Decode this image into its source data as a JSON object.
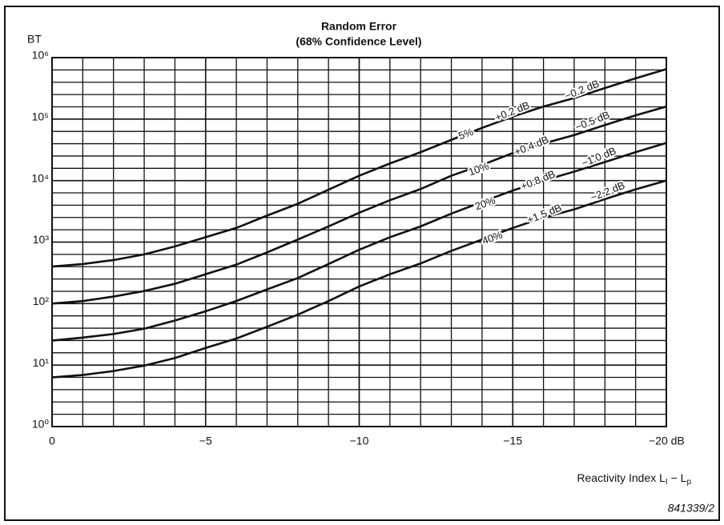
{
  "chart_data": {
    "type": "line",
    "title": "Random Error",
    "subtitle": "(68% Confidence Level)",
    "ylabel": "BT",
    "xlabel": [
      "Reactivity Index L",
      "I",
      " − L",
      "p"
    ],
    "figure_code": "841339/2",
    "x": [
      0,
      -1,
      -2,
      -3,
      -4,
      -5,
      -6,
      -7,
      -8,
      -9,
      -10,
      -11,
      -12,
      -13,
      -14,
      -15,
      -16,
      -17,
      -18,
      -19,
      -20
    ],
    "xlim": [
      0,
      -20
    ],
    "xticks": [
      {
        "value": 0,
        "label": "0"
      },
      {
        "value": -5,
        "label": "−5"
      },
      {
        "value": -10,
        "label": "−10"
      },
      {
        "value": -15,
        "label": "−15"
      },
      {
        "value": -20,
        "label": "−20 dB"
      }
    ],
    "xminor_step": 1,
    "ylim": [
      1,
      1000000
    ],
    "log_y": true,
    "yticks": [
      {
        "value": 1,
        "label": "10⁰"
      },
      {
        "value": 10,
        "label": "10¹"
      },
      {
        "value": 100,
        "label": "10²"
      },
      {
        "value": 1000,
        "label": "10³"
      },
      {
        "value": 10000,
        "label": "10⁴"
      },
      {
        "value": 100000,
        "label": "10⁵"
      },
      {
        "value": 1000000,
        "label": "10⁶"
      }
    ],
    "minor_grid_divisions": 5,
    "grid": true,
    "series": [
      {
        "name": "5%",
        "color": "#111111",
        "error_labels": [
          "+0.2 dB",
          "−0.2 dB"
        ],
        "values": [
          400,
          440,
          510,
          630,
          850,
          1200,
          1700,
          2700,
          4200,
          7100,
          12000,
          19000,
          29000,
          46000,
          72000,
          110000,
          160000,
          220000,
          320000,
          460000,
          650000
        ]
      },
      {
        "name": "10%",
        "color": "#111111",
        "error_labels": [
          "+0.4 dB",
          "−0.5 dB"
        ],
        "values": [
          100,
          110,
          130,
          160,
          210,
          300,
          430,
          680,
          1100,
          1800,
          3000,
          4800,
          7300,
          12000,
          18000,
          28000,
          40000,
          55000,
          80000,
          115000,
          160000
        ]
      },
      {
        "name": "20%",
        "color": "#111111",
        "error_labels": [
          "+0.8 dB",
          "−1.0 dB"
        ],
        "values": [
          25,
          28,
          32,
          39,
          53,
          75,
          110,
          170,
          260,
          440,
          750,
          1200,
          1800,
          2900,
          4500,
          6900,
          10000,
          14000,
          20000,
          29000,
          41000
        ]
      },
      {
        "name": "40%",
        "color": "#111111",
        "error_labels": [
          "+1.5 dB",
          "−2.2 dB"
        ],
        "values": [
          6.3,
          6.9,
          8,
          9.8,
          13,
          19,
          27,
          42,
          66,
          110,
          190,
          300,
          450,
          720,
          1100,
          1700,
          2500,
          3400,
          5000,
          7200,
          10000
        ]
      }
    ]
  }
}
